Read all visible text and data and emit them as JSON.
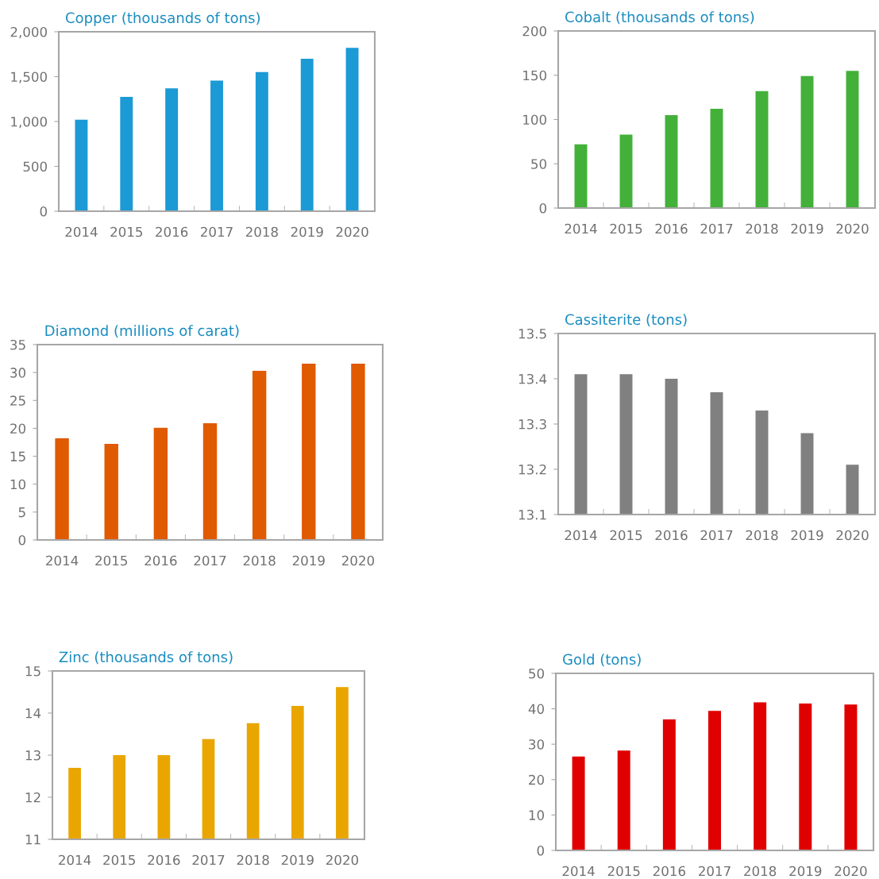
{
  "chart_data": [
    {
      "type": "bar",
      "title": "Copper (thousands of tons)",
      "categories": [
        "2014",
        "2015",
        "2016",
        "2017",
        "2018",
        "2019",
        "2020"
      ],
      "values": [
        1020,
        1275,
        1370,
        1455,
        1550,
        1700,
        1820
      ],
      "color": "#1b9ad6",
      "ylim": [
        0,
        2000
      ],
      "yticks": [
        0,
        {
          "value": 500,
          "label": "500"
        },
        {
          "value": 1000,
          "label": "1,000"
        },
        {
          "value": 1500,
          "label": "1,500"
        },
        {
          "value": 2000,
          "label": "2,000"
        }
      ]
    },
    {
      "type": "bar",
      "title": "Cobalt (thousands of tons)",
      "categories": [
        "2014",
        "2015",
        "2016",
        "2017",
        "2018",
        "2019",
        "2020"
      ],
      "values": [
        72,
        83,
        105,
        112,
        132,
        149,
        155
      ],
      "color": "#43b03a",
      "ylim": [
        0,
        200
      ],
      "yticks": [
        0,
        50,
        100,
        150,
        200
      ]
    },
    {
      "type": "bar",
      "title": "Diamond (millions of carat)",
      "categories": [
        "2014",
        "2015",
        "2016",
        "2017",
        "2018",
        "2019",
        "2020"
      ],
      "values": [
        18.2,
        17.2,
        20.1,
        20.9,
        30.3,
        31.6,
        31.6
      ],
      "color": "#e05a00",
      "ylim": [
        0,
        35
      ],
      "yticks": [
        0,
        5,
        10,
        15,
        20,
        25,
        30,
        35
      ]
    },
    {
      "type": "bar",
      "title": "Cassiterite (tons)",
      "categories": [
        "2014",
        "2015",
        "2016",
        "2017",
        "2018",
        "2019",
        "2020"
      ],
      "values": [
        13.41,
        13.41,
        13.4,
        13.37,
        13.33,
        13.28,
        13.21
      ],
      "color": "#808080",
      "ylim": [
        13.1,
        13.5
      ],
      "yticks": [
        13.1,
        13.2,
        13.3,
        13.4,
        13.5
      ]
    },
    {
      "type": "bar",
      "title": "Zinc (thousands of tons)",
      "categories": [
        "2014",
        "2015",
        "2016",
        "2017",
        "2018",
        "2019",
        "2020"
      ],
      "values": [
        12.7,
        13.0,
        13.0,
        13.38,
        13.76,
        14.17,
        14.62
      ],
      "color": "#eaa600",
      "ylim": [
        11,
        15
      ],
      "yticks": [
        11,
        12,
        13,
        14,
        15
      ]
    },
    {
      "type": "bar",
      "title": "Gold (tons)",
      "categories": [
        "2014",
        "2015",
        "2016",
        "2017",
        "2018",
        "2019",
        "2020"
      ],
      "values": [
        26.5,
        28.2,
        37.0,
        39.4,
        41.8,
        41.5,
        41.2
      ],
      "color": "#e00000",
      "ylim": [
        0,
        50
      ],
      "yticks": [
        0,
        10,
        20,
        30,
        40,
        50
      ]
    }
  ]
}
